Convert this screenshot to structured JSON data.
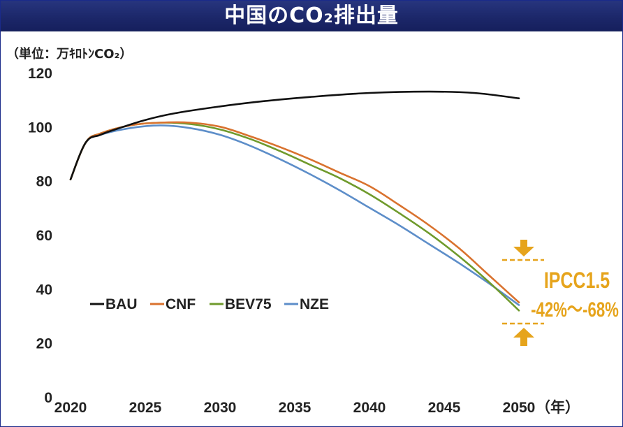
{
  "title": "中国のCO₂排出量",
  "unit_label": "（単位：万ｷﾛﾄﾝCO₂）",
  "chart_data": {
    "type": "line",
    "title": "中国のCO₂排出量",
    "ylabel": "（単位：万ｷﾛﾄﾝCO₂）",
    "xlabel": "（年）",
    "x_tick_labels": [
      "2020",
      "2025",
      "2030",
      "2035",
      "2040",
      "2045",
      "2050"
    ],
    "y_tick_labels": [
      "0",
      "20",
      "40",
      "60",
      "80",
      "100",
      "120"
    ],
    "xlim": [
      2020,
      2050
    ],
    "ylim": [
      0,
      120
    ],
    "legend_position": "middle-left",
    "series": [
      {
        "name": "BAU",
        "color": "#111111",
        "x": [
          2020,
          2021,
          2022,
          2023,
          2025,
          2027,
          2030,
          2033,
          2036,
          2040,
          2044,
          2047,
          2050
        ],
        "y": [
          80.5,
          94,
          97,
          99,
          102.5,
          105,
          107.5,
          109.5,
          111,
          112.5,
          113,
          112.5,
          110.5
        ]
      },
      {
        "name": "CNF",
        "color": "#d9722e",
        "x": [
          2020,
          2021,
          2022,
          2024,
          2026,
          2028,
          2030,
          2032,
          2034,
          2036,
          2038,
          2040,
          2042,
          2044,
          2046,
          2048,
          2050
        ],
        "y": [
          80.5,
          94,
          97.5,
          100.5,
          101.5,
          101.5,
          100,
          96.5,
          92.5,
          88,
          83,
          78,
          71,
          63.5,
          55,
          45,
          35
        ]
      },
      {
        "name": "BEV75",
        "color": "#6f9a2c",
        "x": [
          2020,
          2021,
          2022,
          2024,
          2026,
          2028,
          2030,
          2032,
          2034,
          2036,
          2038,
          2040,
          2042,
          2044,
          2046,
          2048,
          2050
        ],
        "y": [
          80.5,
          94,
          97.5,
          100.5,
          101.5,
          101,
          99,
          95.5,
          91,
          86,
          81,
          75,
          68,
          60.5,
          52,
          42.5,
          32
        ]
      },
      {
        "name": "NZE",
        "color": "#5d8ec9",
        "x": [
          2020,
          2021,
          2022,
          2024,
          2026,
          2028,
          2030,
          2032,
          2034,
          2036,
          2038,
          2040,
          2042,
          2044,
          2046,
          2048,
          2050
        ],
        "y": [
          80.5,
          94,
          97,
          99.5,
          100.5,
          99.5,
          97,
          93,
          88,
          82.5,
          76.5,
          70,
          63.5,
          56.5,
          49.5,
          42,
          34
        ]
      }
    ],
    "annotations": [
      {
        "text": "IPCC1.5",
        "color": "#e6a41c"
      },
      {
        "text": "-42%～-68%",
        "color": "#e6a41c"
      }
    ]
  }
}
